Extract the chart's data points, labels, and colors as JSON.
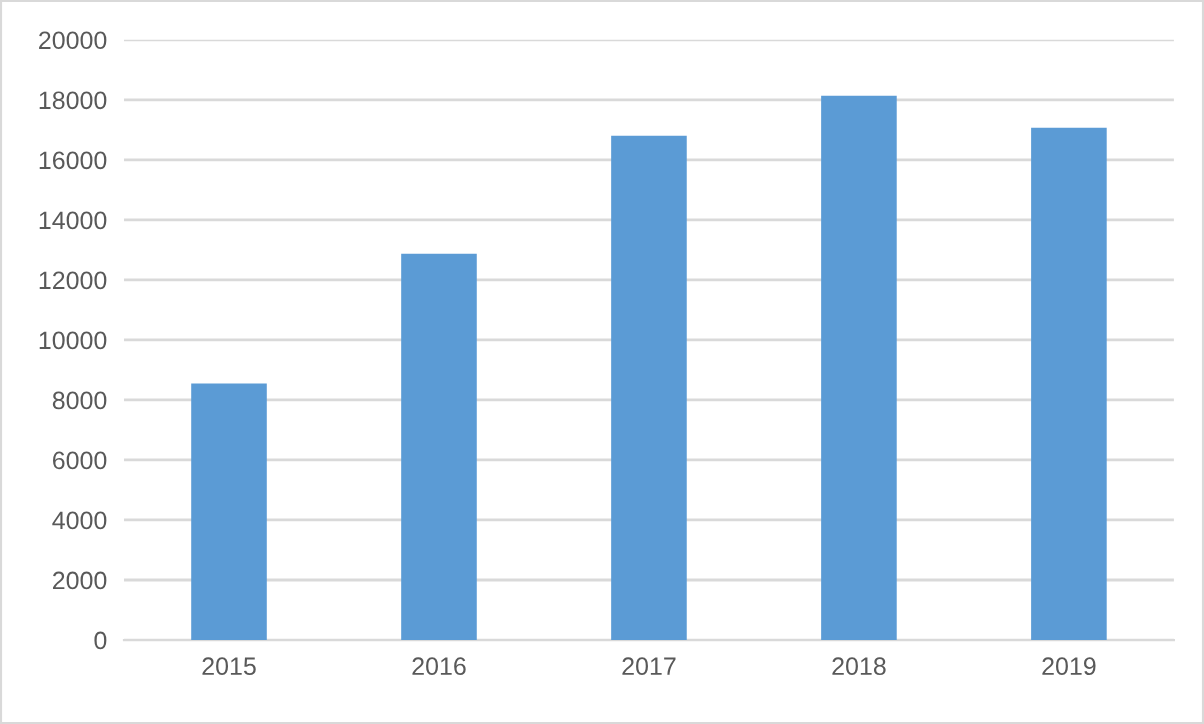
{
  "chart_data": {
    "type": "bar",
    "categories": [
      "2015",
      "2016",
      "2017",
      "2018",
      "2019"
    ],
    "values": [
      8550,
      12870,
      16800,
      18140,
      17070
    ],
    "color": "#5b9bd5",
    "ylim": [
      0,
      20000
    ],
    "yticks": [
      0,
      2000,
      4000,
      6000,
      8000,
      10000,
      12000,
      14000,
      16000,
      18000,
      20000
    ],
    "grid": "y",
    "legend": false
  }
}
